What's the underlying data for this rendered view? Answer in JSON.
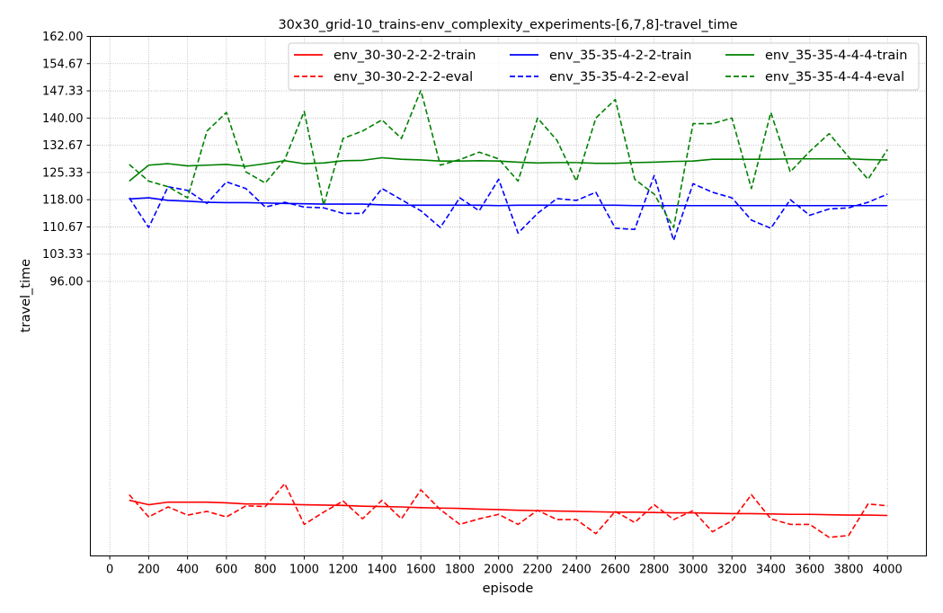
{
  "chart_data": {
    "type": "line",
    "title": "30x30_grid-10_trains-env_complexity_experiments-[6,7,8]-travel_time",
    "xlabel": "episode",
    "ylabel": "travel_time",
    "xlim": [
      -100,
      4200
    ],
    "ylim": [
      22,
      162
    ],
    "x_ticks": [
      0,
      200,
      400,
      600,
      800,
      1000,
      1200,
      1400,
      1600,
      1800,
      2000,
      2200,
      2400,
      2600,
      2800,
      3000,
      3200,
      3400,
      3600,
      3800,
      4000
    ],
    "y_ticks": [
      96.0,
      103.33,
      110.67,
      118.0,
      125.33,
      132.67,
      140.0,
      147.33,
      154.67,
      162.0
    ],
    "y_tick_labels": [
      "96.00",
      "103.33",
      "110.67",
      "118.00",
      "125.33",
      "132.67",
      "140.00",
      "147.33",
      "154.67",
      "162.00"
    ],
    "grid": true,
    "legend_position": "top-right",
    "x": [
      100,
      200,
      300,
      400,
      500,
      600,
      700,
      800,
      900,
      1000,
      1100,
      1200,
      1300,
      1400,
      1500,
      1600,
      1700,
      1800,
      1900,
      2000,
      2100,
      2200,
      2300,
      2400,
      2500,
      2600,
      2700,
      2800,
      2900,
      3000,
      3100,
      3200,
      3300,
      3400,
      3500,
      3600,
      3700,
      3800,
      3900,
      4000
    ],
    "series": [
      {
        "name": "env_30-30-2-2-2-train",
        "color": "#ff0000",
        "style": "solid",
        "values": [
          37.0,
          35.8,
          36.5,
          36.5,
          36.5,
          36.3,
          36.0,
          36.0,
          35.9,
          35.8,
          35.7,
          35.6,
          35.4,
          35.3,
          35.2,
          35.0,
          34.9,
          34.8,
          34.6,
          34.5,
          34.3,
          34.2,
          34.1,
          34.0,
          33.9,
          33.8,
          33.8,
          33.7,
          33.6,
          33.6,
          33.5,
          33.4,
          33.4,
          33.3,
          33.2,
          33.2,
          33.1,
          33.0,
          33.0,
          32.9
        ]
      },
      {
        "name": "env_30-30-2-2-2-eval",
        "color": "#ff0000",
        "style": "dashed",
        "values": [
          38.5,
          32.5,
          35.2,
          33.0,
          34.0,
          32.5,
          35.5,
          35.3,
          41.5,
          30.5,
          33.8,
          36.8,
          32.0,
          37.0,
          32.0,
          39.8,
          34.5,
          30.5,
          32.0,
          33.2,
          30.5,
          34.3,
          31.8,
          31.8,
          28.0,
          34.0,
          31.0,
          35.8,
          31.8,
          34.2,
          28.5,
          31.5,
          38.5,
          32.0,
          30.5,
          30.5,
          27.0,
          27.5,
          36.0,
          35.5
        ]
      },
      {
        "name": "env_35-35-4-2-2-train",
        "color": "#0000ff",
        "style": "solid",
        "values": [
          118.2,
          118.5,
          117.8,
          117.6,
          117.3,
          117.2,
          117.2,
          117.1,
          117.0,
          116.9,
          116.8,
          116.8,
          116.8,
          116.6,
          116.5,
          116.5,
          116.5,
          116.5,
          116.5,
          116.4,
          116.5,
          116.5,
          116.5,
          116.5,
          116.5,
          116.5,
          116.4,
          116.4,
          116.4,
          116.4,
          116.4,
          116.4,
          116.4,
          116.4,
          116.4,
          116.4,
          116.4,
          116.4,
          116.4,
          116.4
        ]
      },
      {
        "name": "env_35-35-4-2-2-eval",
        "color": "#0000ff",
        "style": "dashed",
        "values": [
          118.5,
          110.5,
          121.5,
          120.5,
          117.0,
          122.8,
          121.0,
          116.0,
          117.3,
          116.0,
          115.8,
          114.3,
          114.3,
          121.0,
          118.0,
          115.0,
          110.5,
          118.5,
          115.0,
          123.5,
          109.0,
          114.3,
          118.3,
          117.8,
          120.0,
          110.3,
          110.0,
          124.5,
          107.0,
          122.3,
          120.0,
          118.5,
          112.5,
          110.3,
          118.0,
          113.8,
          115.5,
          115.8,
          117.3,
          119.5
        ]
      },
      {
        "name": "env_35-35-4-4-4-train",
        "color": "#008000",
        "style": "solid",
        "values": [
          123.0,
          127.3,
          127.7,
          127.1,
          127.3,
          127.5,
          127.0,
          127.7,
          128.5,
          127.7,
          127.9,
          128.5,
          128.6,
          129.3,
          128.9,
          128.7,
          128.4,
          128.4,
          128.5,
          128.4,
          128.1,
          127.9,
          128.0,
          128.0,
          127.8,
          127.8,
          128.0,
          128.1,
          128.3,
          128.4,
          128.9,
          128.9,
          128.9,
          128.9,
          129.0,
          129.0,
          129.0,
          129.0,
          128.8,
          128.7
        ]
      },
      {
        "name": "env_35-35-4-4-4-eval",
        "color": "#008000",
        "style": "dashed",
        "values": [
          127.5,
          123.0,
          121.5,
          118.5,
          136.5,
          141.5,
          125.5,
          122.5,
          128.8,
          141.8,
          116.5,
          134.5,
          136.5,
          139.5,
          134.5,
          147.5,
          127.3,
          128.8,
          130.8,
          129.0,
          123.0,
          140.0,
          134.0,
          123.0,
          140.0,
          145.0,
          123.5,
          119.5,
          110.5,
          138.5,
          138.5,
          140.0,
          121.0,
          141.5,
          125.5,
          131.0,
          135.8,
          129.5,
          123.5,
          131.5
        ]
      }
    ]
  }
}
